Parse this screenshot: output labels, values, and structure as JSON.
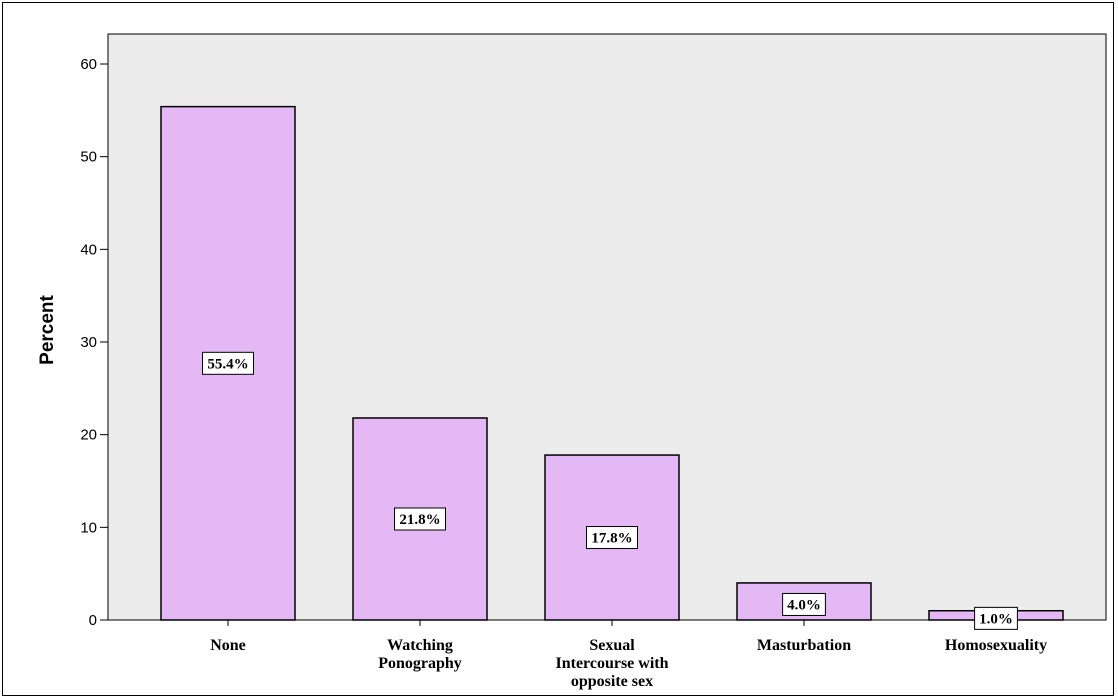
{
  "chart_data": {
    "type": "bar",
    "title": "",
    "xlabel": "",
    "ylabel": "Percent",
    "ylim": [
      0,
      60
    ],
    "yticks": [
      0,
      10,
      20,
      30,
      40,
      50,
      60
    ],
    "categories": [
      [
        "None"
      ],
      [
        "Watching",
        "Ponography"
      ],
      [
        "Sexual",
        "Intercourse with",
        "opposite sex"
      ],
      [
        "Masturbation"
      ],
      [
        "Homosexuality"
      ]
    ],
    "values": [
      55.4,
      21.8,
      17.8,
      4.0,
      1.0
    ],
    "data_labels": [
      "55.4%",
      "21.8%",
      "17.8%",
      "4.0%",
      "1.0%"
    ],
    "bar_color": "#e3b8f5",
    "plot_background": "#ececec",
    "grid": false,
    "legend": "none"
  }
}
